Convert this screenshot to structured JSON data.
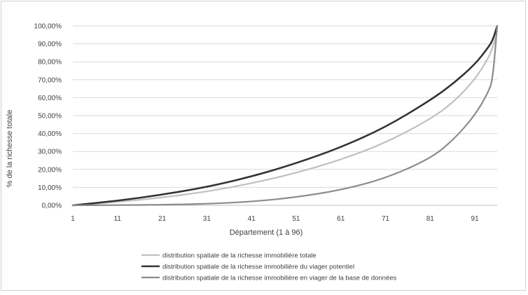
{
  "chart_data": {
    "type": "line",
    "title": "",
    "xlabel": "Département (1 à 96)",
    "ylabel": "% de la richesse totale",
    "x_ticks": [
      "1",
      "11",
      "21",
      "31",
      "41",
      "51",
      "61",
      "71",
      "81",
      "91"
    ],
    "y_ticks": [
      "0,00%",
      "10,00%",
      "20,00%",
      "30,00%",
      "40,00%",
      "50,00%",
      "60,00%",
      "70,00%",
      "80,00%",
      "90,00%",
      "100,00%"
    ],
    "xlim": [
      1,
      96
    ],
    "ylim": [
      0,
      100
    ],
    "grid": "horizontal",
    "legend_position": "bottom",
    "x": [
      1,
      11,
      21,
      31,
      41,
      51,
      61,
      71,
      81,
      86,
      91,
      94,
      95,
      96
    ],
    "series": [
      {
        "name": "distribution spatiale de la richesse immobilière totale",
        "color": "#c0c0c0",
        "values": [
          0,
          1.8,
          4.3,
          7.6,
          12.2,
          18,
          25.4,
          34.8,
          48,
          57,
          70,
          82,
          88,
          97
        ]
      },
      {
        "name": "distribution spatiale de la richesse immobilière du viager potentiel",
        "color": "#333333",
        "values": [
          0,
          2.5,
          5.9,
          10.2,
          16,
          23.4,
          32.3,
          43.5,
          58.5,
          67.5,
          78.5,
          88,
          92,
          100
        ]
      },
      {
        "name": "distribution spatiale de la richesse immobilière en viager de la base de données",
        "color": "#8c8c8c",
        "values": [
          0,
          0.1,
          0.3,
          0.8,
          2,
          4.5,
          8.5,
          15,
          26,
          36,
          50,
          63,
          70,
          100
        ]
      }
    ]
  }
}
